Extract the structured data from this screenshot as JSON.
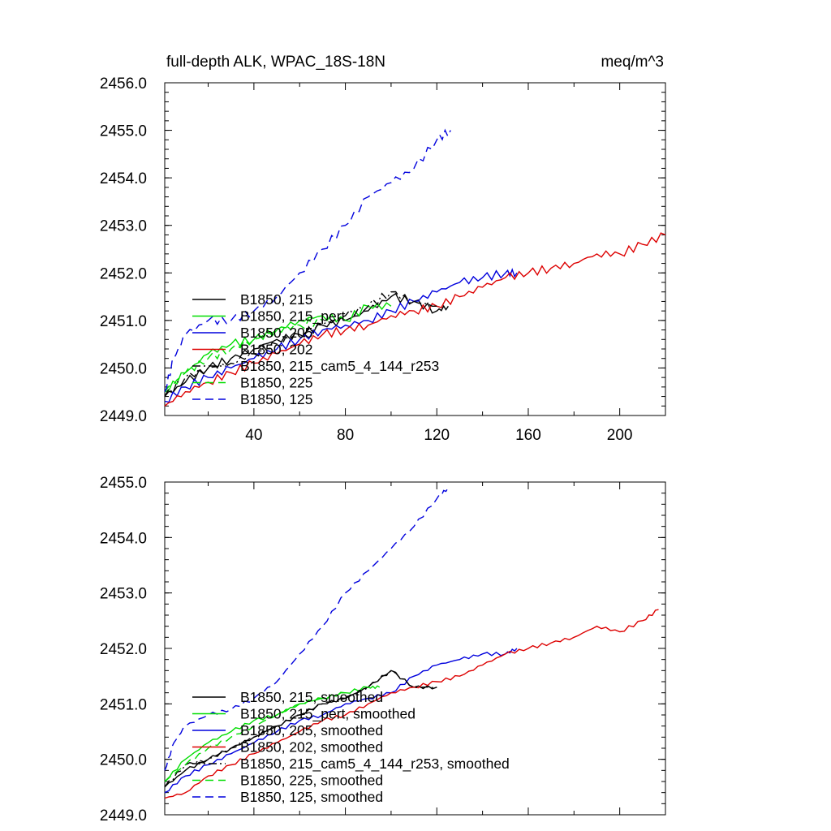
{
  "chart_data": [
    {
      "type": "line",
      "title": "full-depth ALK, WPAC_18S-18N",
      "units": "meq/m^3",
      "xlim": [
        1,
        220
      ],
      "ylim": [
        2449.0,
        2456.0
      ],
      "xticks": [
        40,
        80,
        120,
        160,
        200
      ],
      "yticks": [
        2449.0,
        2450.0,
        2451.0,
        2452.0,
        2453.0,
        2454.0,
        2455.0,
        2456.0
      ],
      "ytick_labels": [
        "2449.0",
        "2450.0",
        "2451.0",
        "2452.0",
        "2453.0",
        "2454.0",
        "2455.0",
        "2456.0"
      ],
      "xtick_labels": [
        "40",
        "80",
        "120",
        "160",
        "200"
      ],
      "legend_position": "left",
      "series": [
        {
          "name": "B1850, 215",
          "color": "#000000",
          "dash": "solid",
          "x": [
            1,
            10,
            20,
            30,
            40,
            50,
            60,
            70,
            80,
            90,
            100,
            110,
            120,
            125
          ],
          "y": [
            2449.4,
            2449.7,
            2450.0,
            2450.2,
            2450.4,
            2450.6,
            2450.7,
            2450.9,
            2451.0,
            2451.2,
            2451.5,
            2451.4,
            2451.2,
            2451.3
          ]
        },
        {
          "name": "B1850, 215_pert",
          "color": "#00dd00",
          "dash": "solid",
          "x": [
            1,
            10,
            20,
            30,
            40,
            50,
            60,
            70,
            80,
            90,
            100
          ],
          "y": [
            2449.5,
            2449.9,
            2450.3,
            2450.5,
            2450.6,
            2450.8,
            2451.0,
            2451.1,
            2451.0,
            2451.3,
            2451.3
          ]
        },
        {
          "name": "B1850, 205",
          "color": "#0000dd",
          "dash": "solid",
          "x": [
            1,
            10,
            20,
            30,
            40,
            50,
            60,
            70,
            80,
            90,
            100,
            110,
            120,
            130,
            140,
            150,
            155
          ],
          "y": [
            2449.3,
            2449.6,
            2449.8,
            2450.0,
            2450.2,
            2450.4,
            2450.6,
            2450.8,
            2450.9,
            2451.0,
            2451.2,
            2451.4,
            2451.6,
            2451.8,
            2451.9,
            2452.0,
            2452.0
          ]
        },
        {
          "name": "B1850, 202",
          "color": "#dd0000",
          "dash": "solid",
          "x": [
            1,
            10,
            20,
            30,
            40,
            50,
            60,
            70,
            80,
            90,
            100,
            110,
            120,
            130,
            140,
            150,
            160,
            170,
            180,
            190,
            200,
            210,
            220
          ],
          "y": [
            2449.2,
            2449.5,
            2449.7,
            2449.9,
            2450.1,
            2450.3,
            2450.5,
            2450.7,
            2450.8,
            2450.9,
            2451.1,
            2451.2,
            2451.3,
            2451.5,
            2451.7,
            2451.9,
            2452.0,
            2452.1,
            2452.2,
            2452.4,
            2452.4,
            2452.6,
            2452.8
          ]
        },
        {
          "name": "B1850, 215_cam5_4_144_r253",
          "color": "#000000",
          "dash": "dash-dot",
          "x": [
            1,
            10,
            20,
            30,
            40,
            50,
            60,
            70,
            80,
            90,
            100,
            110,
            120
          ],
          "y": [
            2449.4,
            2449.8,
            2450.0,
            2450.1,
            2450.3,
            2450.5,
            2450.7,
            2450.9,
            2451.1,
            2451.3,
            2451.6,
            2451.4,
            2451.3
          ]
        },
        {
          "name": "B1850, 225",
          "color": "#00dd00",
          "dash": "dash",
          "x": [
            1,
            10,
            20,
            30,
            40,
            50,
            60,
            70
          ],
          "y": [
            2449.5,
            2449.9,
            2450.2,
            2450.4,
            2450.6,
            2450.8,
            2450.9,
            2451.0
          ]
        },
        {
          "name": "B1850, 125",
          "color": "#0000dd",
          "dash": "dash",
          "x": [
            1,
            5,
            10,
            20,
            30,
            40,
            50,
            60,
            70,
            80,
            90,
            100,
            110,
            120,
            126
          ],
          "y": [
            2449.5,
            2450.2,
            2450.7,
            2451.0,
            2451.0,
            2451.2,
            2451.5,
            2452.0,
            2452.5,
            2453.0,
            2453.6,
            2453.9,
            2454.2,
            2454.8,
            2455.0
          ]
        }
      ]
    },
    {
      "type": "line",
      "title": "",
      "xlim": [
        1,
        220
      ],
      "ylim": [
        2449.0,
        2455.0
      ],
      "xticks": [
        40,
        80,
        120,
        160,
        200
      ],
      "yticks": [
        2449.0,
        2450.0,
        2451.0,
        2452.0,
        2453.0,
        2454.0,
        2455.0
      ],
      "ytick_labels": [
        "2449.0",
        "2450.0",
        "2451.0",
        "2452.0",
        "2453.0",
        "2454.0",
        "2455.0"
      ],
      "legend_position": "left",
      "series": [
        {
          "name": "B1850, 215, smoothed",
          "color": "#000000",
          "dash": "solid",
          "x": [
            1,
            10,
            20,
            30,
            40,
            50,
            60,
            70,
            80,
            90,
            100,
            110,
            120
          ],
          "y": [
            2449.5,
            2449.8,
            2450.0,
            2450.2,
            2450.4,
            2450.6,
            2450.8,
            2451.0,
            2451.1,
            2451.3,
            2451.6,
            2451.3,
            2451.3
          ]
        },
        {
          "name": "B1850, 215_pert, smoothed",
          "color": "#00dd00",
          "dash": "solid",
          "x": [
            1,
            10,
            20,
            30,
            40,
            50,
            60,
            70,
            80,
            90,
            95
          ],
          "y": [
            2449.6,
            2450.0,
            2450.3,
            2450.5,
            2450.7,
            2450.8,
            2451.0,
            2451.1,
            2451.2,
            2451.3,
            2451.3
          ]
        },
        {
          "name": "B1850, 205, smoothed",
          "color": "#0000dd",
          "dash": "solid",
          "x": [
            1,
            10,
            20,
            30,
            40,
            50,
            60,
            70,
            80,
            90,
            100,
            110,
            120,
            130,
            140,
            150,
            155
          ],
          "y": [
            2449.4,
            2449.7,
            2449.9,
            2450.1,
            2450.3,
            2450.5,
            2450.7,
            2450.8,
            2451.0,
            2451.1,
            2451.2,
            2451.5,
            2451.7,
            2451.8,
            2451.9,
            2451.9,
            2452.0
          ]
        },
        {
          "name": "B1850, 202, smoothed",
          "color": "#dd0000",
          "dash": "solid",
          "x": [
            1,
            10,
            20,
            30,
            40,
            50,
            60,
            70,
            80,
            90,
            100,
            110,
            120,
            130,
            140,
            150,
            160,
            170,
            180,
            190,
            200,
            210,
            217
          ],
          "y": [
            2449.3,
            2449.4,
            2449.7,
            2449.9,
            2450.1,
            2450.3,
            2450.5,
            2450.7,
            2450.8,
            2451.0,
            2451.2,
            2451.3,
            2451.4,
            2451.5,
            2451.7,
            2451.9,
            2452.0,
            2452.1,
            2452.2,
            2452.4,
            2452.3,
            2452.5,
            2452.7
          ]
        },
        {
          "name": "B1850, 215_cam5_4_144_r253, smoothed",
          "color": "#000000",
          "dash": "dash-dot",
          "x": [
            1,
            10,
            20,
            30,
            40,
            50,
            60,
            70,
            80,
            90,
            100,
            110,
            120
          ],
          "y": [
            2449.5,
            2449.9,
            2450.0,
            2450.2,
            2450.4,
            2450.6,
            2450.8,
            2451.0,
            2451.1,
            2451.3,
            2451.6,
            2451.3,
            2451.3
          ]
        },
        {
          "name": "B1850, 225, smoothed",
          "color": "#00dd00",
          "dash": "dash",
          "x": [
            1,
            10,
            20,
            30,
            40,
            50,
            60,
            70,
            80
          ],
          "y": [
            2449.6,
            2449.9,
            2450.2,
            2450.4,
            2450.6,
            2450.8,
            2451.0,
            2451.1,
            2451.2
          ]
        },
        {
          "name": "B1850, 125, smoothed",
          "color": "#0000dd",
          "dash": "dash",
          "x": [
            1,
            5,
            10,
            20,
            30,
            40,
            50,
            60,
            70,
            80,
            90,
            100,
            110,
            120,
            125
          ],
          "y": [
            2449.8,
            2450.3,
            2450.6,
            2450.8,
            2450.9,
            2451.1,
            2451.4,
            2451.9,
            2452.4,
            2453.0,
            2453.4,
            2453.8,
            2454.2,
            2454.7,
            2454.9
          ]
        }
      ]
    }
  ]
}
